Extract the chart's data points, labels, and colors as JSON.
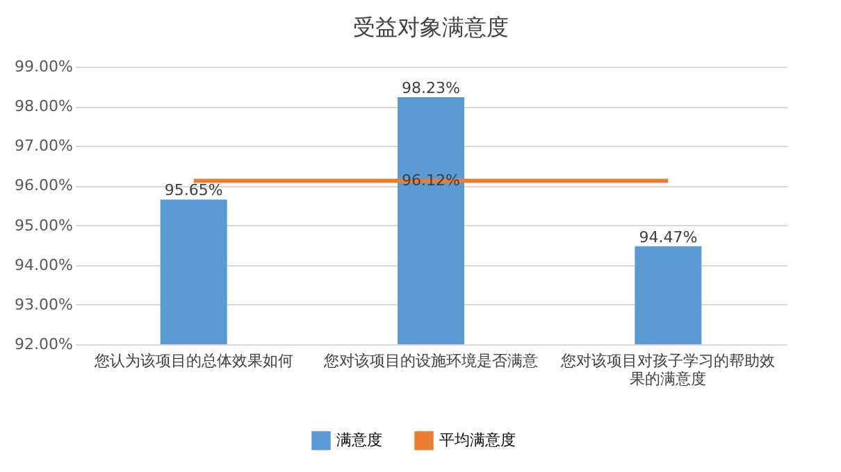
{
  "chart_data": {
    "type": "bar",
    "title": "受益对象满意度",
    "categories": [
      "您认为该项目的总体效果如何",
      "您对该项目的设施环境是否满意",
      "您对该项目对孩子学习的帮助效果的满意度"
    ],
    "series": [
      {
        "name": "满意度",
        "type": "bar",
        "color": "#5b9bd5",
        "values": [
          95.65,
          98.23,
          94.47
        ],
        "value_labels": [
          "95.65%",
          "98.23%",
          "94.47%"
        ]
      },
      {
        "name": "平均满意度",
        "type": "line",
        "color": "#ed7d31",
        "values": [
          96.12,
          96.12,
          96.12
        ],
        "value_labels": [
          null,
          "96.12%",
          null
        ]
      }
    ],
    "ylim": [
      92,
      99
    ],
    "yticks": [
      {
        "value": 92,
        "label": "92.00%"
      },
      {
        "value": 93,
        "label": "93.00%"
      },
      {
        "value": 94,
        "label": "94.00%"
      },
      {
        "value": 95,
        "label": "95.00%"
      },
      {
        "value": 96,
        "label": "96.00%"
      },
      {
        "value": 97,
        "label": "97.00%"
      },
      {
        "value": 98,
        "label": "98.00%"
      },
      {
        "value": 99,
        "label": "99.00%"
      }
    ],
    "grid": "y",
    "legend": "bottom",
    "marker": "none",
    "line_style": "solid"
  }
}
